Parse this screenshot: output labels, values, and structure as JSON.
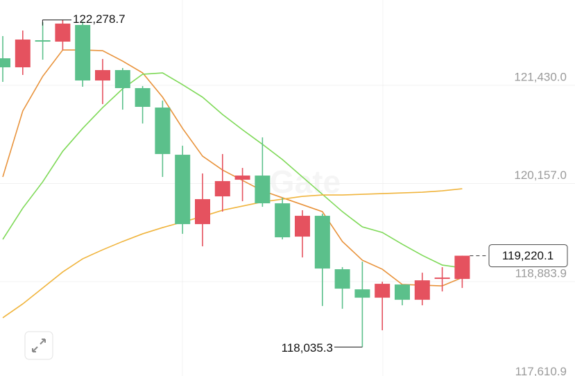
{
  "chart_data": {
    "type": "candlestick",
    "ylim": [
      117606,
      122537
    ],
    "yticks": [
      {
        "value": 121430.0,
        "label": "121,430.0"
      },
      {
        "value": 120157.0,
        "label": "120,157.0"
      },
      {
        "value": 118883.9,
        "label": "118,883.9"
      },
      {
        "value": 117610.9,
        "label": "117,610.9"
      }
    ],
    "grid": true,
    "up_color": "#e5525f",
    "down_color": "#5bc08b",
    "open": [
      121781,
      121664,
      122015,
      121997,
      122213,
      121493,
      121628,
      121394,
      121142,
      120530,
      119630,
      119990,
      120206,
      120260,
      119900,
      119468,
      119738,
      119045,
      118784,
      118676,
      118847,
      118649,
      118919,
      118919
    ],
    "high": [
      122069,
      122141,
      122249,
      122278.7,
      122258,
      121772,
      121655,
      121421,
      121232,
      120647,
      120287,
      120539,
      120359,
      120755,
      119972,
      119810,
      119765,
      119072,
      119144,
      118883,
      118847,
      119000,
      119072,
      119220.1
    ],
    "low": [
      121475,
      121565,
      121763,
      121889,
      121412,
      121187,
      121115,
      120935,
      120242,
      119504,
      119342,
      119792,
      119927,
      119855,
      119432,
      119198,
      118568,
      118532,
      118035.3,
      118253,
      118577,
      118577,
      118757,
      118802
    ],
    "close": [
      121664,
      122024,
      121997,
      122231,
      121493,
      121628,
      121394,
      121151,
      120539,
      119630,
      119954,
      120188,
      120260,
      119900,
      119459,
      119738,
      119054,
      118793,
      118676,
      118856,
      118649,
      118901,
      118937,
      119220.1
    ],
    "lines": [
      {
        "color": "#e8923a",
        "values": [
          120242,
          121097,
          121547,
          121889,
          121889,
          121880,
          121745,
          121592,
          121277,
          120872,
          120512,
          120332,
          120197,
          120062,
          119972,
          119882,
          119792,
          119405,
          119162,
          119045,
          118847,
          118838,
          118829,
          118937
        ]
      },
      {
        "color": "#7ed957",
        "values": [
          119432,
          119837,
          120179,
          120575,
          120872,
          121142,
          121385,
          121574,
          121592,
          121439,
          121277,
          121052,
          120854,
          120665,
          120467,
          120242,
          120017,
          119792,
          119594,
          119522,
          119369,
          119225,
          119099,
          119063
        ]
      },
      {
        "color": "#f0b43c",
        "values": [
          118415,
          118595,
          118802,
          119009,
          119180,
          119297,
          119405,
          119504,
          119585,
          119657,
          119729,
          119810,
          119864,
          119918,
          119954,
          119990,
          120008,
          120008,
          120017,
          120026,
          120035,
          120044,
          120062,
          120089
        ]
      }
    ],
    "high_marker": {
      "value": 122278.7,
      "label": "122,278.7"
    },
    "low_marker": {
      "value": 118035.3,
      "label": "118,035.3"
    },
    "last_price": {
      "value": 119220.1,
      "label": "119,220.1"
    },
    "watermark": "Gate"
  }
}
